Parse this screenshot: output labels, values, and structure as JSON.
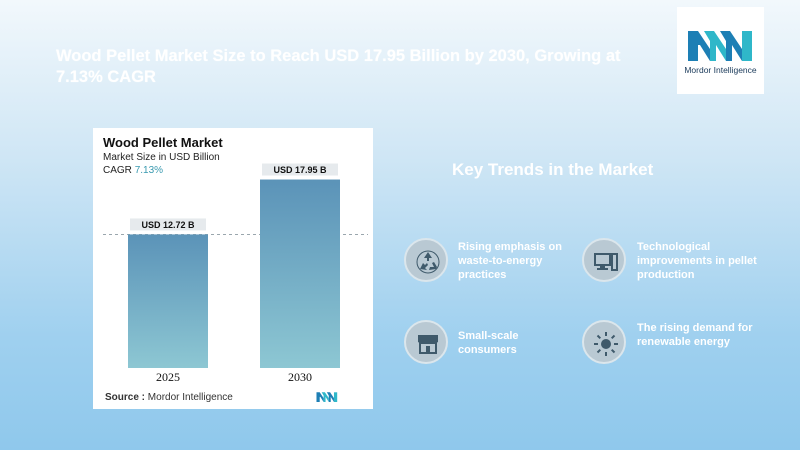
{
  "headline": "Wood Pellet Market Size to Reach USD 17.95 Billion by 2030, Growing at 7.13% CAGR",
  "logo": {
    "text": "Mordor Intelligence"
  },
  "chart_data": {
    "type": "bar",
    "title": "Wood Pellet Market",
    "subtitle": "Market Size in USD Billion",
    "cagr_label": "CAGR",
    "cagr_value": "7.13%",
    "categories": [
      "2025",
      "2030"
    ],
    "values": [
      12.72,
      17.95
    ],
    "value_labels": [
      "USD 12.72 B",
      "USD 17.95 B"
    ],
    "ylim": [
      0,
      20
    ],
    "source_label": "Source :",
    "source_value": "Mordor Intelligence",
    "colors": {
      "bar_top": "#5b93b8",
      "bar_bottom": "#8dc7d3",
      "label_bg": "#e6eaed"
    }
  },
  "trends": {
    "title": "Key Trends in the Market",
    "items": [
      {
        "label": "Rising emphasis on waste-to-energy practices",
        "icon": "recycle-icon"
      },
      {
        "label": "Technological improvements in pellet production",
        "icon": "computer-icon"
      },
      {
        "label": "Small-scale consumers",
        "icon": "shop-icon"
      },
      {
        "label": "The rising demand for renewable energy",
        "icon": "sun-icon"
      }
    ]
  }
}
